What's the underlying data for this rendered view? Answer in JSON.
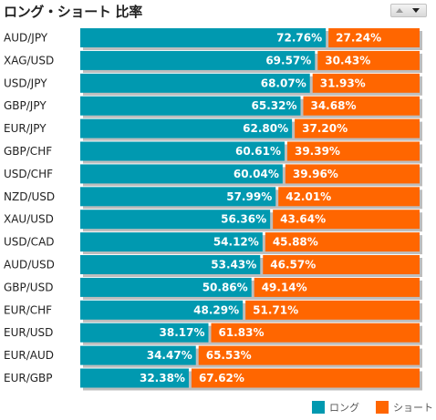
{
  "title": "ロング・ショート 比率",
  "colors": {
    "long": "#0099b0",
    "short": "#ff6600",
    "shadow": "#bdbdbd"
  },
  "legend": {
    "long_label": "ロング",
    "short_label": "ショート"
  },
  "chart_data": {
    "type": "bar",
    "orientation": "horizontal",
    "stacked": true,
    "title": "ロング・ショート 比率",
    "categories": [
      "AUD/JPY",
      "XAG/USD",
      "USD/JPY",
      "GBP/JPY",
      "EUR/JPY",
      "GBP/CHF",
      "USD/CHF",
      "NZD/USD",
      "XAU/USD",
      "USD/CAD",
      "AUD/USD",
      "GBP/USD",
      "EUR/CHF",
      "EUR/USD",
      "EUR/AUD",
      "EUR/GBP"
    ],
    "series": [
      {
        "name": "ロング",
        "values": [
          72.76,
          69.57,
          68.07,
          65.32,
          62.8,
          60.61,
          60.04,
          57.99,
          56.36,
          54.12,
          53.43,
          50.86,
          48.29,
          38.17,
          34.47,
          32.38
        ]
      },
      {
        "name": "ショート",
        "values": [
          27.24,
          30.43,
          31.93,
          34.68,
          37.2,
          39.39,
          39.96,
          42.01,
          43.64,
          45.88,
          46.57,
          49.14,
          51.71,
          61.83,
          65.53,
          67.62
        ]
      }
    ],
    "xlim": [
      0,
      100
    ],
    "legend_position": "bottom-right"
  }
}
